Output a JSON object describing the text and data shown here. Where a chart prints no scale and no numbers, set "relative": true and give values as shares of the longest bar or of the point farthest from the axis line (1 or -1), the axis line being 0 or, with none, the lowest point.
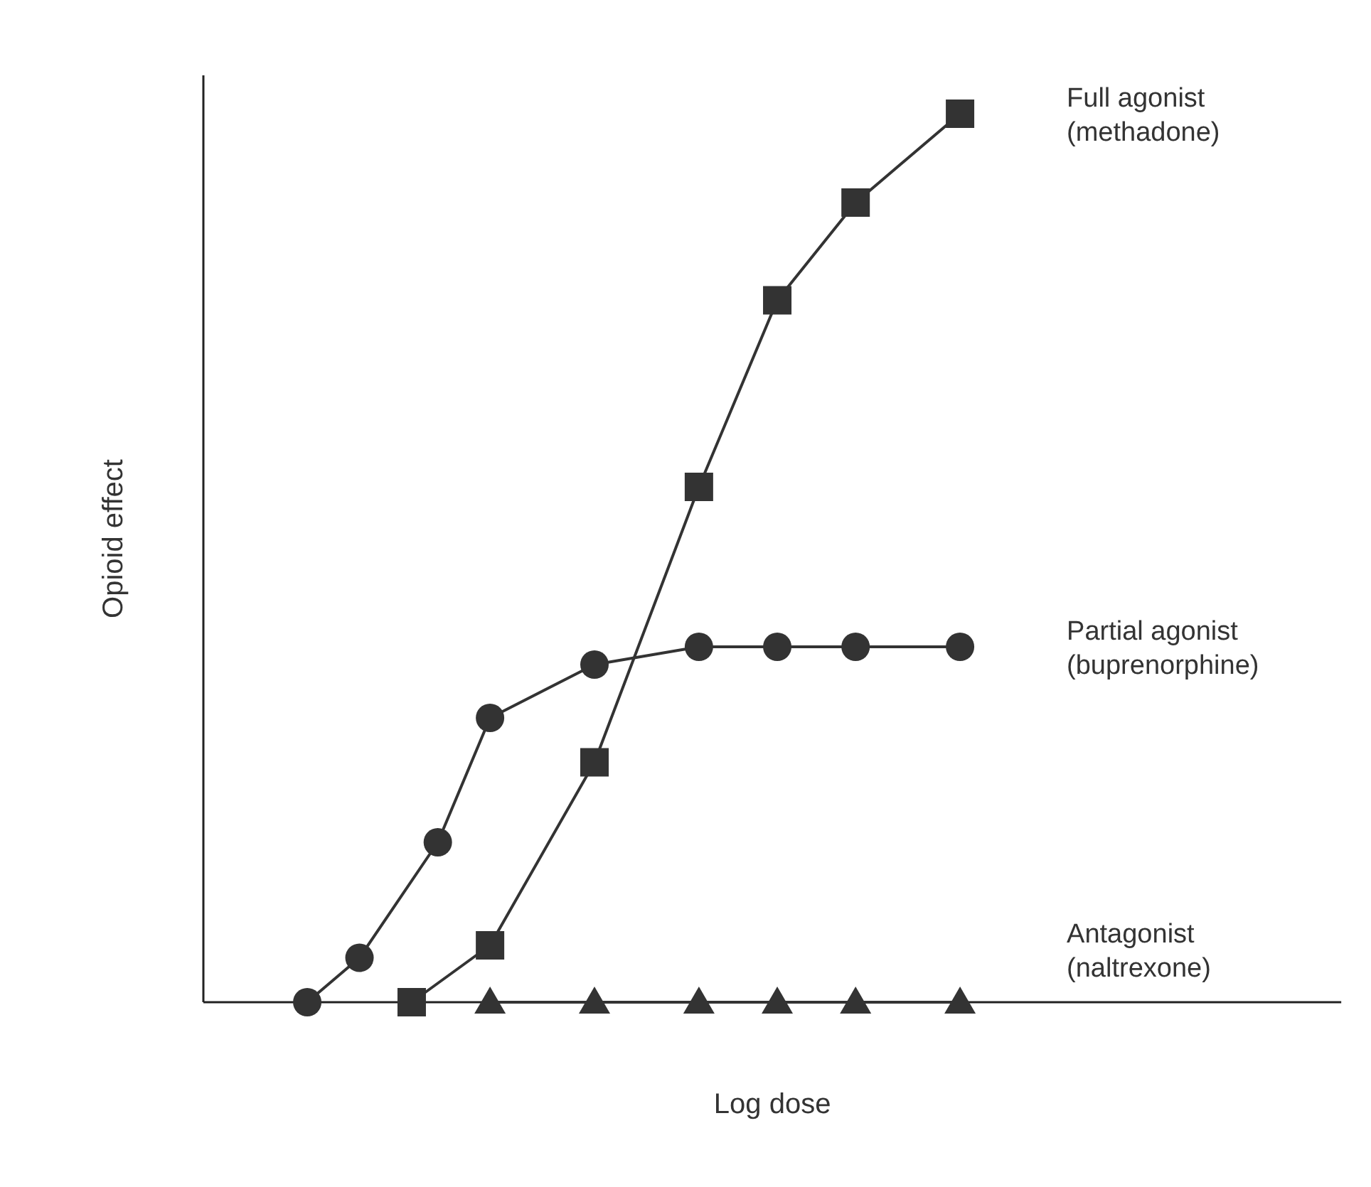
{
  "chart_data": {
    "type": "line",
    "relative": true,
    "xlabel": "Log dose",
    "ylabel": "Opioid effect",
    "categories": [
      null,
      null,
      null,
      null,
      null,
      null,
      null,
      null,
      null,
      null,
      null,
      null,
      null,
      null,
      null,
      null,
      null,
      null,
      null,
      null,
      null,
      null,
      null,
      null,
      null,
      null,
      null,
      null,
      null,
      null,
      null,
      null,
      null,
      null,
      null,
      null,
      null,
      null,
      null,
      null,
      null,
      null,
      null,
      null
    ],
    "series": [
      {
        "name": "Full agonist\n(methadone)",
        "color": "#333333",
        "marker": "square",
        "values": [
          null,
          null,
          null,
          null,
          null,
          null,
          null,
          null,
          0,
          null,
          null,
          0.064,
          null,
          null,
          null,
          0.27,
          null,
          null,
          null,
          0.58,
          null,
          null,
          0.79,
          null,
          null,
          0.9,
          null,
          null,
          null,
          1,
          null,
          null,
          null,
          null,
          null,
          null,
          null,
          null,
          null,
          null,
          null,
          null,
          null,
          null
        ]
      },
      {
        "name": "Partial agonist\n(buprenorphine)",
        "color": "#333333",
        "marker": "circle",
        "values": [
          null,
          null,
          null,
          null,
          0,
          null,
          0.05,
          null,
          null,
          0.18,
          null,
          0.32,
          null,
          null,
          null,
          0.38,
          null,
          null,
          null,
          0.4,
          null,
          null,
          0.4,
          null,
          null,
          0.4,
          null,
          null,
          null,
          0.4,
          null,
          null,
          null,
          null,
          null,
          null,
          null,
          null,
          null,
          null,
          null,
          null,
          null,
          null
        ]
      },
      {
        "name": "Antagonist\n(naltrexone)",
        "color": "#333333",
        "marker": "triangle",
        "values": [
          null,
          null,
          null,
          null,
          null,
          null,
          null,
          null,
          null,
          null,
          null,
          0,
          null,
          null,
          null,
          0,
          null,
          null,
          null,
          0,
          null,
          null,
          0,
          null,
          null,
          0,
          null,
          null,
          null,
          0,
          null,
          null,
          null,
          null,
          null,
          null,
          null,
          null,
          null,
          null,
          null,
          null,
          null,
          null
        ]
      }
    ]
  }
}
